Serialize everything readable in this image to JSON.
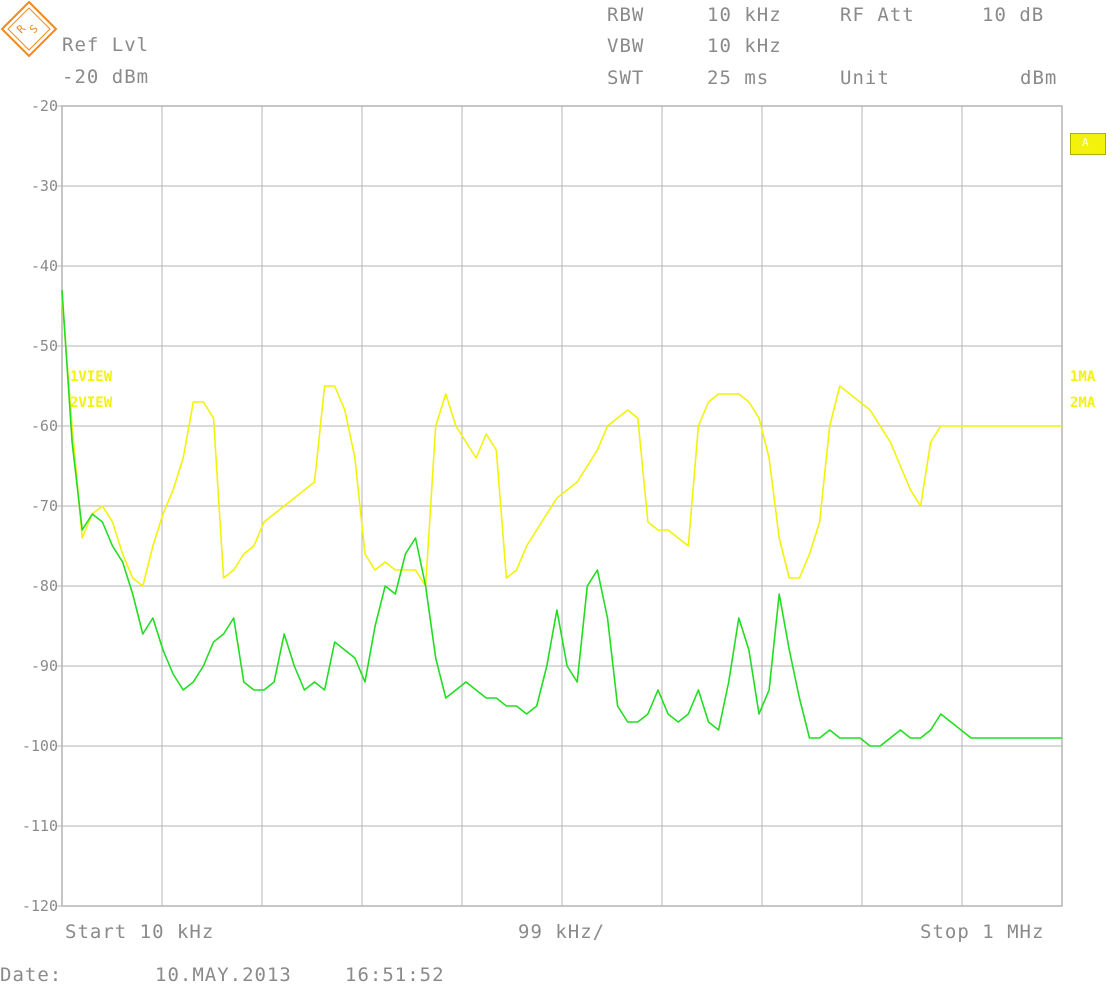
{
  "header": {
    "ref_lvl_label": "Ref Lvl",
    "ref_lvl_value": "-20 dBm",
    "rbw_label": "RBW",
    "rbw_value": "10 kHz",
    "vbw_label": "VBW",
    "vbw_value": "10 kHz",
    "swt_label": "SWT",
    "swt_value": "25 ms",
    "rf_att_label": "RF Att",
    "rf_att_value": "10 dB",
    "unit_label": "Unit",
    "unit_value": "dBm"
  },
  "logo": {
    "icon": "rohde-schwarz-logo-icon",
    "text": "R&S",
    "color": "#f08a1c"
  },
  "badge": {
    "text": "A"
  },
  "footer": {
    "start": "Start 10 kHz",
    "span_per_div": "99 kHz/",
    "stop": "Stop 1 MHz",
    "date_label": "Date:",
    "date_value": "10.MAY.2013",
    "time_value": "16:51:52"
  },
  "chart_data": {
    "type": "line",
    "xlabel": "",
    "ylabel": "",
    "x_range_khz": [
      10,
      1000
    ],
    "ylim": [
      -120,
      -20
    ],
    "y_ticks": [
      -20,
      -30,
      -40,
      -50,
      -60,
      -70,
      -80,
      -90,
      -100,
      -110,
      -120
    ],
    "grid": true,
    "colors": {
      "trace1": "#f2f20a",
      "trace2": "#22dd22",
      "grid": "#b4b4b4",
      "text": "#8a8a8a"
    },
    "labels_left": [
      "1VIEW",
      "2VIEW"
    ],
    "labels_right": [
      "1MA",
      "2MA"
    ],
    "series": [
      {
        "name": "1",
        "x": [
          10,
          20,
          30,
          40,
          50,
          60,
          70,
          80,
          90,
          100,
          110,
          120,
          130,
          140,
          150,
          160,
          170,
          180,
          190,
          200,
          210,
          220,
          230,
          240,
          250,
          260,
          270,
          280,
          290,
          300,
          310,
          320,
          330,
          340,
          350,
          360,
          370,
          380,
          390,
          400,
          410,
          420,
          430,
          440,
          450,
          460,
          470,
          480,
          490,
          500,
          510,
          520,
          530,
          540,
          550,
          560,
          570,
          580,
          590,
          600,
          610,
          620,
          630,
          640,
          650,
          660,
          670,
          680,
          690,
          700,
          710,
          720,
          730,
          740,
          750,
          760,
          770,
          780,
          790,
          800,
          810,
          820,
          830,
          840,
          850,
          860,
          870,
          880,
          890,
          900,
          910,
          920,
          930,
          940,
          950,
          960,
          970,
          980,
          990,
          1000
        ],
        "values": [
          -44,
          -60,
          -74,
          -71,
          -70,
          -72,
          -76,
          -79,
          -80,
          -75,
          -71,
          -68,
          -64,
          -57,
          -57,
          -59,
          -79,
          -78,
          -76,
          -75,
          -72,
          -71,
          -70,
          -69,
          -68,
          -67,
          -55,
          -55,
          -58,
          -64,
          -76,
          -78,
          -77,
          -78,
          -78,
          -78,
          -80,
          -60,
          -56,
          -60,
          -62,
          -64,
          -61,
          -63,
          -79,
          -78,
          -75,
          -73,
          -71,
          -69,
          -68,
          -67,
          -65,
          -63,
          -60,
          -59,
          -58,
          -59,
          -72,
          -73,
          -73,
          -74,
          -75,
          -60,
          -57,
          -56,
          -56,
          -56,
          -57,
          -59,
          -64,
          -74,
          -79,
          -79,
          -76,
          -72,
          -60,
          -55,
          -56,
          -57,
          -58,
          -60,
          -62,
          -65,
          -68,
          -70,
          -62,
          -60,
          -60,
          -60,
          -60,
          -60,
          -60,
          -60,
          -60,
          -60,
          -60,
          -60,
          -60,
          -60
        ]
      },
      {
        "name": "2",
        "x": [
          10,
          20,
          30,
          40,
          50,
          60,
          70,
          80,
          90,
          100,
          110,
          120,
          130,
          140,
          150,
          160,
          170,
          180,
          190,
          200,
          210,
          220,
          230,
          240,
          250,
          260,
          270,
          280,
          290,
          300,
          310,
          320,
          330,
          340,
          350,
          360,
          370,
          380,
          390,
          400,
          410,
          420,
          430,
          440,
          450,
          460,
          470,
          480,
          490,
          500,
          510,
          520,
          530,
          540,
          550,
          560,
          570,
          580,
          590,
          600,
          610,
          620,
          630,
          640,
          650,
          660,
          670,
          680,
          690,
          700,
          710,
          720,
          730,
          740,
          750,
          760,
          770,
          780,
          790,
          800,
          810,
          820,
          830,
          840,
          850,
          860,
          870,
          880,
          890,
          900,
          910,
          920,
          930,
          940,
          950,
          960,
          970,
          980,
          990,
          1000
        ],
        "values": [
          -43,
          -62,
          -73,
          -71,
          -72,
          -75,
          -77,
          -81,
          -86,
          -84,
          -88,
          -91,
          -93,
          -92,
          -90,
          -87,
          -86,
          -84,
          -92,
          -93,
          -93,
          -92,
          -86,
          -90,
          -93,
          -92,
          -93,
          -87,
          -88,
          -89,
          -92,
          -85,
          -80,
          -81,
          -76,
          -74,
          -80,
          -89,
          -94,
          -93,
          -92,
          -93,
          -94,
          -94,
          -95,
          -95,
          -96,
          -95,
          -90,
          -83,
          -90,
          -92,
          -80,
          -78,
          -84,
          -95,
          -97,
          -97,
          -96,
          -93,
          -96,
          -97,
          -96,
          -93,
          -97,
          -98,
          -92,
          -84,
          -88,
          -96,
          -93,
          -81,
          -88,
          -94,
          -99,
          -99,
          -98,
          -99,
          -99,
          -99,
          -100,
          -100,
          -99,
          -98,
          -99,
          -99,
          -98,
          -96,
          -97,
          -98,
          -99,
          -99,
          -99,
          -99,
          -99,
          -99,
          -99,
          -99,
          -99,
          -99
        ]
      }
    ]
  }
}
